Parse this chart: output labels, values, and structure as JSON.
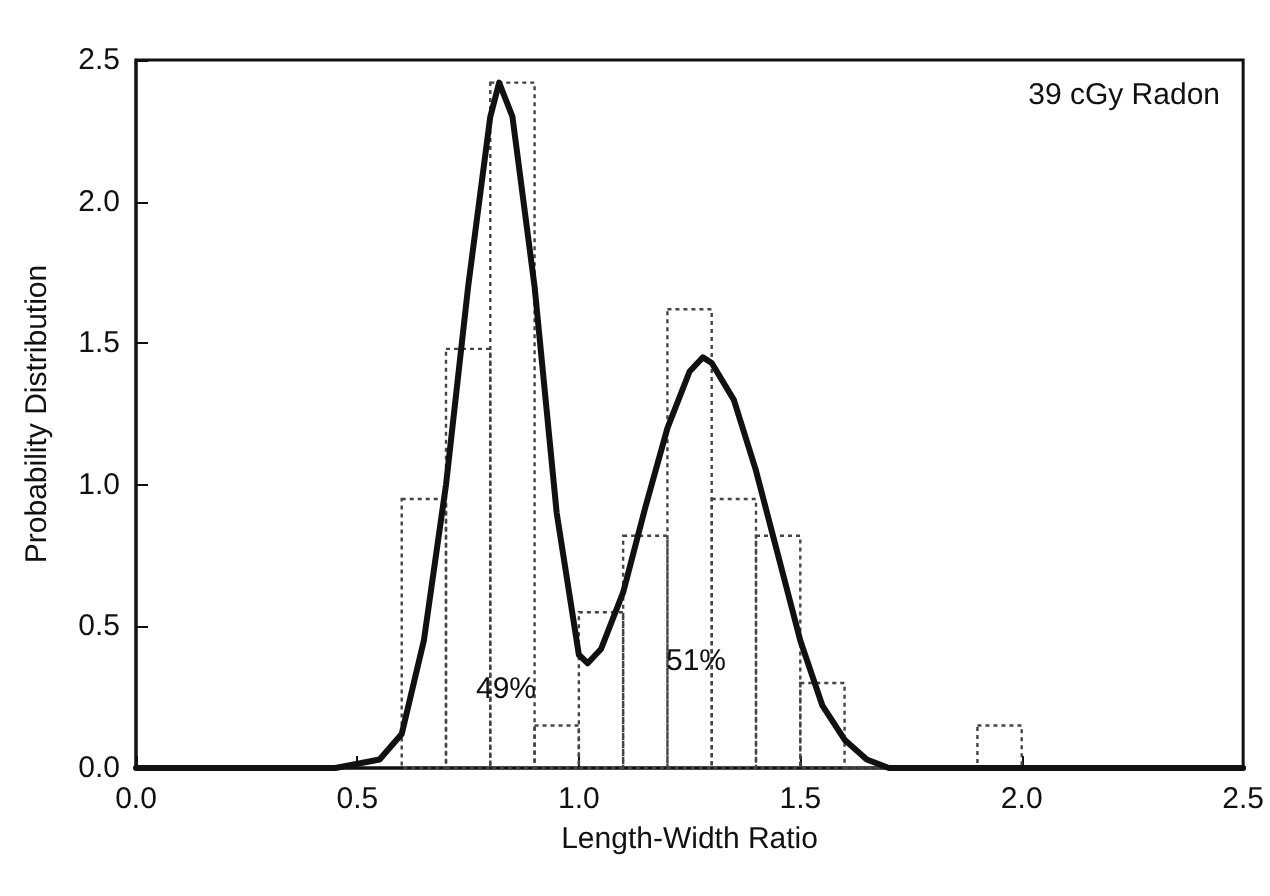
{
  "chart_data": {
    "type": "histogram",
    "xlabel": "Length-Width Ratio",
    "ylabel": "Probability Distribution",
    "annotations": [
      "39 cGy Radon",
      "49%",
      "51%"
    ],
    "xlim": [
      0,
      2.5
    ],
    "xticks": [
      {
        "value": 0,
        "label": "0.0"
      },
      {
        "value": 0.5,
        "label": "0.5"
      },
      {
        "value": 1,
        "label": "1.0"
      },
      {
        "value": 1.5,
        "label": "1.5"
      },
      {
        "value": 2,
        "label": "2.0"
      },
      {
        "value": 2.5,
        "label": "2.5"
      }
    ],
    "ylim": [
      0,
      2.5
    ],
    "yticks": [
      {
        "value": 0,
        "label": "0.0"
      },
      {
        "value": 0.5,
        "label": "0.5"
      },
      {
        "value": 1,
        "label": "1.0"
      },
      {
        "value": 1.5,
        "label": "1.5"
      },
      {
        "value": 2,
        "label": "2.0"
      },
      {
        "value": 2.5,
        "label": "2.5"
      }
    ],
    "grid": false,
    "series": [
      {
        "type": "histogram",
        "color": "#444444",
        "line_style": "dotted",
        "bins": [
          0.6,
          0.7,
          0.8,
          0.9,
          1.0,
          1.1,
          1.2,
          1.3,
          1.4,
          1.5,
          1.6,
          1.7,
          1.8,
          1.9,
          2.0
        ],
        "values": [
          0.95,
          1.48,
          2.42,
          0.15,
          0.55,
          0.82,
          1.62,
          0.95,
          0.82,
          0.3,
          0,
          0,
          0,
          0.15
        ]
      },
      {
        "type": "line",
        "color": "#111111",
        "line_style": "solid",
        "marker": "none",
        "x": [
          0,
          0.45,
          0.55,
          0.6,
          0.65,
          0.7,
          0.75,
          0.8,
          0.82,
          0.85,
          0.9,
          0.95,
          1.0,
          1.02,
          1.05,
          1.1,
          1.15,
          1.2,
          1.25,
          1.28,
          1.3,
          1.35,
          1.4,
          1.45,
          1.5,
          1.55,
          1.6,
          1.65,
          1.7,
          2.5
        ],
        "values": [
          0,
          0,
          0.03,
          0.12,
          0.45,
          1.0,
          1.7,
          2.3,
          2.42,
          2.3,
          1.7,
          0.9,
          0.4,
          0.37,
          0.42,
          0.62,
          0.92,
          1.2,
          1.4,
          1.45,
          1.43,
          1.3,
          1.05,
          0.75,
          0.45,
          0.22,
          0.1,
          0.03,
          0,
          0
        ]
      }
    ]
  }
}
